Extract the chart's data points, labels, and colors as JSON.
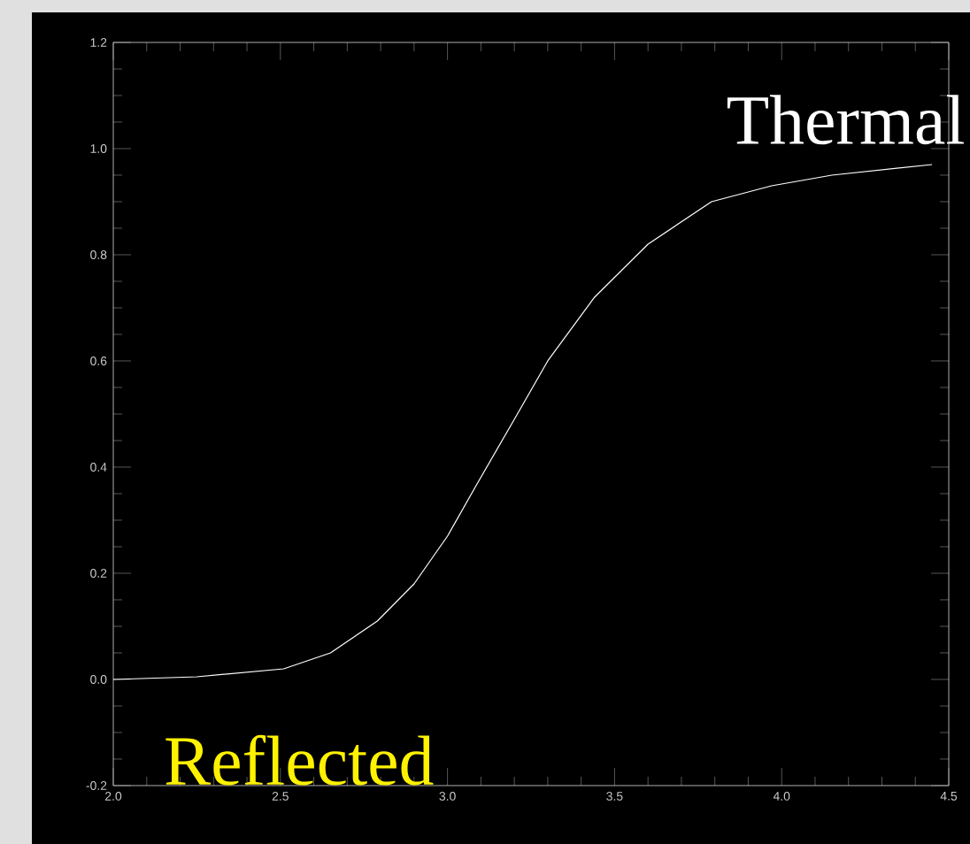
{
  "chart_data": {
    "type": "line",
    "x": [
      2.0,
      2.25,
      2.51,
      2.65,
      2.79,
      2.9,
      3.0,
      3.09,
      3.2,
      3.3,
      3.44,
      3.6,
      3.79,
      3.97,
      4.15,
      4.45
    ],
    "series": [
      {
        "color": "#ffffff",
        "values": [
          0,
          0.005,
          0.02,
          0.05,
          0.11,
          0.18,
          0.27,
          0.37,
          0.49,
          0.6,
          0.72,
          0.82,
          0.9,
          0.93,
          0.95,
          0.97
        ]
      }
    ],
    "xlim": [
      2.0,
      4.5
    ],
    "ylim": [
      -0.2,
      1.2
    ],
    "xticks": [
      {
        "value": 2,
        "label": "2.0"
      },
      2.5,
      {
        "value": 3,
        "label": "3.0"
      },
      3.5,
      {
        "value": 4,
        "label": "4.0"
      },
      4.5
    ],
    "yticks": [
      -0.2,
      {
        "value": 0,
        "label": "0.0"
      },
      0.2,
      0.4,
      0.6,
      0.8,
      {
        "value": 1,
        "label": "1.0"
      },
      1.2
    ],
    "annotations": [
      "Thermal",
      "Reflected"
    ],
    "grid": false,
    "marker": "none",
    "line_style": "solid"
  }
}
